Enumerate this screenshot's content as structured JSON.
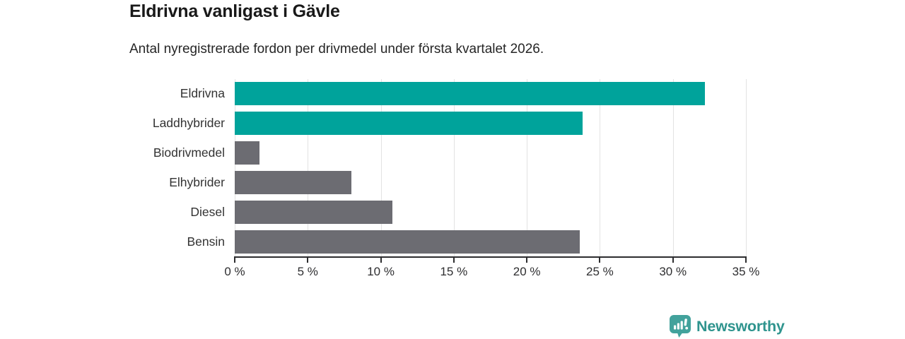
{
  "header": {
    "title": "Eldrivna vanligast i Gävle",
    "subtitle": "Antal nyregistrerade fordon per drivmedel under första kvartalet 2026."
  },
  "chart_data": {
    "type": "bar",
    "orientation": "horizontal",
    "title": "Eldrivna vanligast i Gävle",
    "subtitle": "Antal nyregistrerade fordon per drivmedel under första kvartalet 2026.",
    "categories": [
      "Eldrivna",
      "Laddhybrider",
      "Biodrivmedel",
      "Elhybrider",
      "Diesel",
      "Bensin"
    ],
    "values": [
      32.2,
      23.8,
      1.7,
      8.0,
      10.8,
      23.6
    ],
    "unit": "%",
    "bar_colors": [
      "#00a39b",
      "#00a39b",
      "#6c6c72",
      "#6c6c72",
      "#6c6c72",
      "#6c6c72"
    ],
    "xlim": [
      0,
      35
    ],
    "x_ticks": [
      0,
      5,
      10,
      15,
      20,
      25,
      30,
      35
    ],
    "x_tick_labels": [
      "0 %",
      "5 %",
      "10 %",
      "15 %",
      "20 %",
      "25 %",
      "30 %",
      "35 %"
    ],
    "grid": "vertical",
    "legend": "none"
  },
  "colors": {
    "accent_teal": "#00a39b",
    "neutral_gray": "#6c6c72",
    "gridline": "#e3e3e3",
    "axis": "#2d2d2f",
    "logo_icon": "#42a29c",
    "logo_text": "#2f948e"
  },
  "footer": {
    "brand": "Newsworthy",
    "logo_icon": "bar-chart-speech-bubble-icon"
  }
}
